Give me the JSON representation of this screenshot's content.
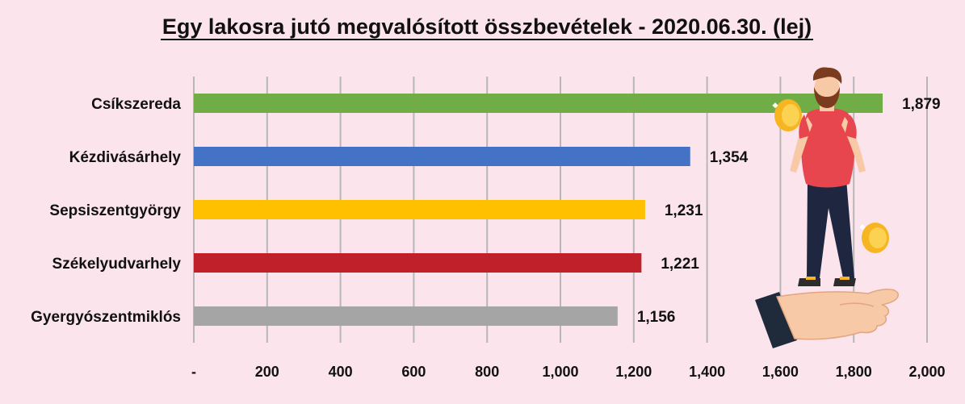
{
  "chart_data": {
    "type": "bar",
    "orientation": "horizontal",
    "title": "Egy lakosra jutó megvalósított összbevételek - 2020.06.30. (lej)",
    "categories": [
      "Csíkszereda",
      "Kézdivásárhely",
      "Sepsiszentgyörgy",
      "Székelyudvarhely",
      "Gyergyószentmiklós"
    ],
    "values": [
      1879,
      1354,
      1231,
      1221,
      1156
    ],
    "value_labels": [
      "1,879",
      "1,354",
      "1,231",
      "1,221",
      "1,156"
    ],
    "colors": [
      "#70ad47",
      "#4472c4",
      "#ffc000",
      "#c0202a",
      "#a5a5a5"
    ],
    "xlim": [
      0,
      2000
    ],
    "x_ticks": [
      0,
      200,
      400,
      600,
      800,
      1000,
      1200,
      1400,
      1600,
      1800,
      2000
    ],
    "x_tick_labels": [
      "-",
      "200",
      "400",
      "600",
      "800",
      "1,000",
      "1,200",
      "1,400",
      "1,600",
      "1,800",
      "2,000"
    ],
    "xlabel": "",
    "ylabel": "",
    "grid": true,
    "legend": "none"
  },
  "illustration": {
    "icon": "man-on-hand-with-coins-icon",
    "colors": {
      "shirt": "#e8464e",
      "pants": "#1f2740",
      "skin": "#f7c9a6",
      "hair": "#7a3b1e",
      "coin": "#f7b521",
      "sleeve": "#1f2a3a"
    }
  }
}
